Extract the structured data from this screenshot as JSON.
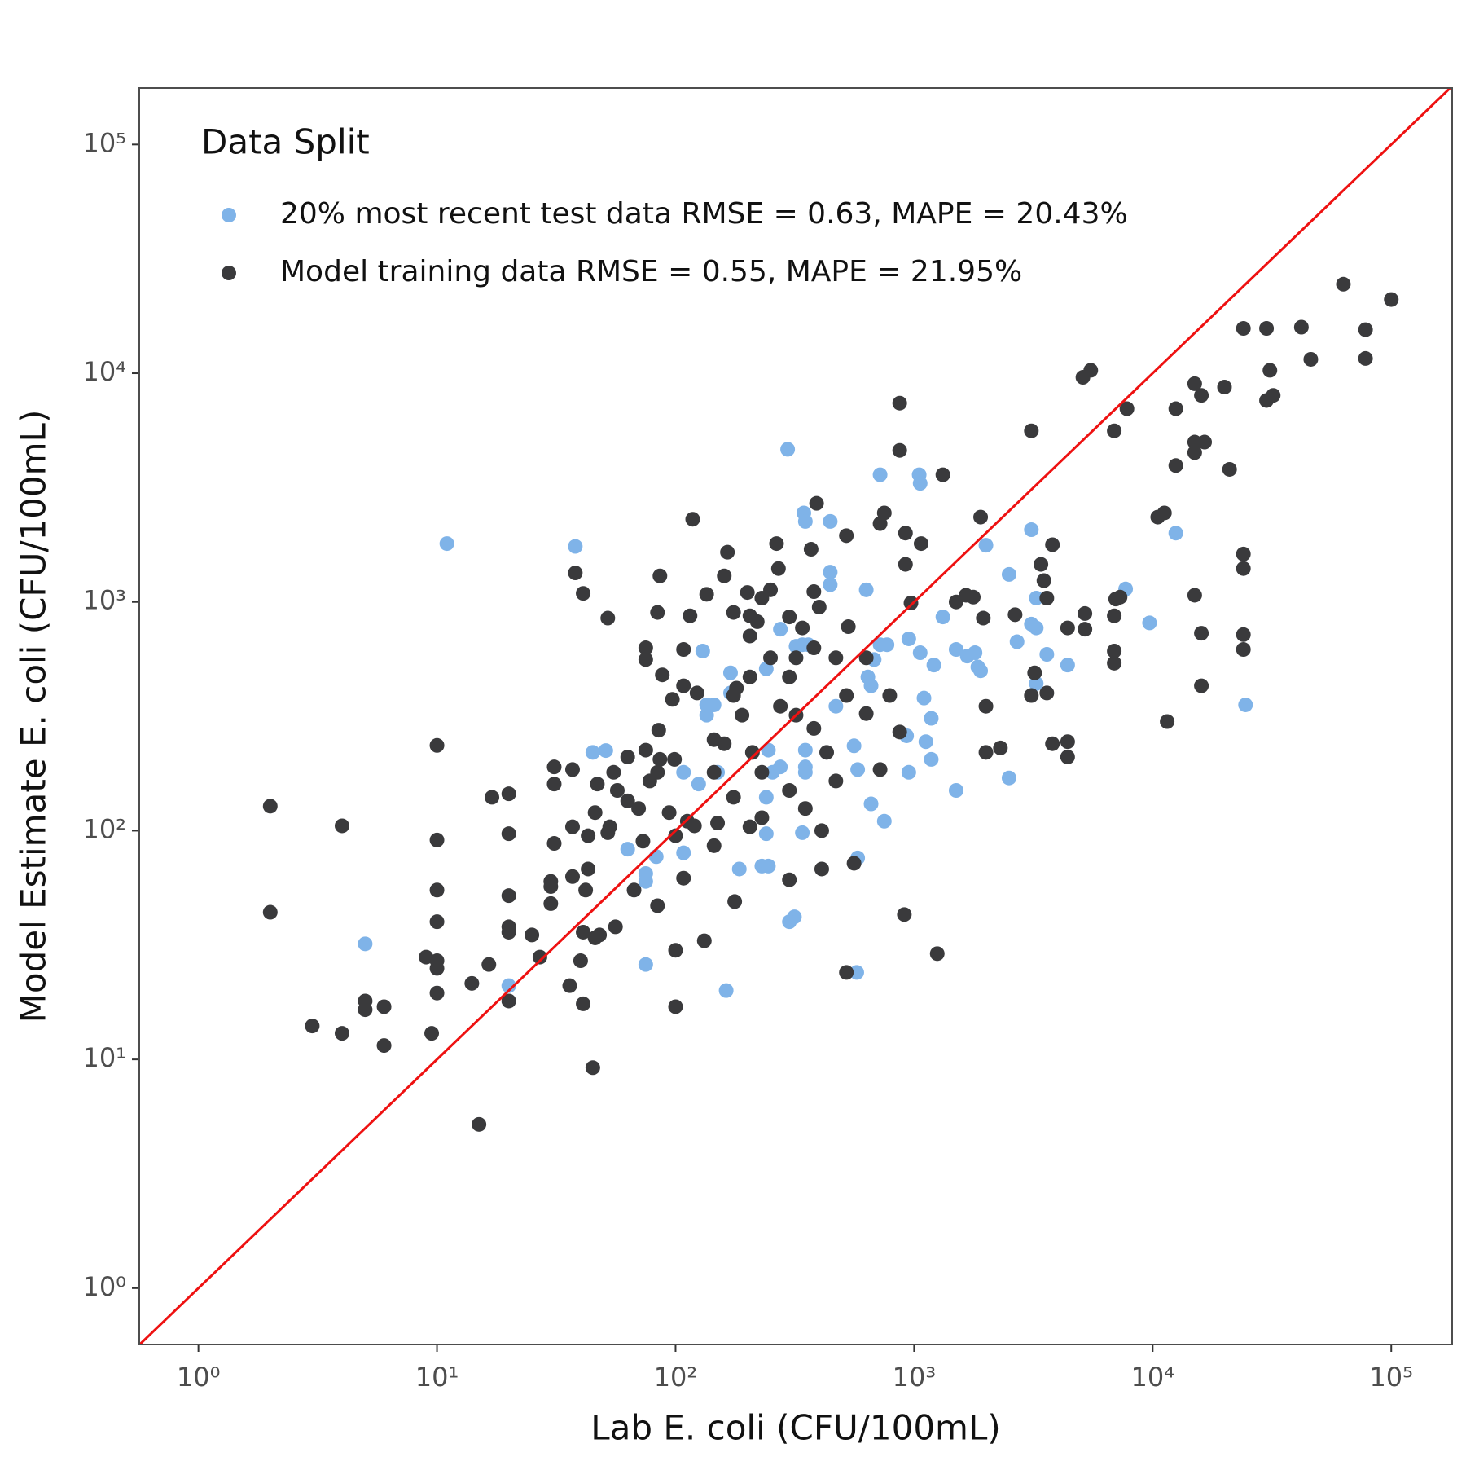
{
  "chart_data": {
    "type": "scatter",
    "x_label": "Lab E. coli (CFU/100mL)",
    "y_label": "Model Estimate E. coli (CFU/100mL)",
    "legend_title": "Data Split",
    "legend": "top-left",
    "log_x": true,
    "log_y": true,
    "grid": false,
    "identity_line": true,
    "identity_line_color": "#ee1111",
    "xlim": [
      0.565,
      180000
    ],
    "ylim": [
      0.567,
      176600
    ],
    "xticks": [
      {
        "value": 1,
        "label": "10⁰"
      },
      {
        "value": 10,
        "label": "10¹"
      },
      {
        "value": 100,
        "label": "10²"
      },
      {
        "value": 1000,
        "label": "10³"
      },
      {
        "value": 10000,
        "label": "10⁴"
      },
      {
        "value": 100000,
        "label": "10⁵"
      }
    ],
    "yticks": [
      {
        "value": 1,
        "label": "10⁰"
      },
      {
        "value": 10,
        "label": "10¹"
      },
      {
        "value": 100,
        "label": "10²"
      },
      {
        "value": 1000,
        "label": "10³"
      },
      {
        "value": 10000,
        "label": "10⁴"
      },
      {
        "value": 100000,
        "label": "10⁵"
      }
    ],
    "series": [
      {
        "name": "20% most recent test data RMSE = 0.63, MAPE = 20.43%",
        "color": "#7fb3e8",
        "x": [
          11,
          38,
          5,
          20,
          51,
          45,
          75,
          75,
          75,
          63,
          83,
          108,
          108,
          125,
          130,
          135,
          135,
          145,
          170,
          170,
          150,
          163,
          185,
          230,
          245,
          240,
          240,
          245,
          240,
          255,
          275,
          275,
          295,
          345,
          350,
          445,
          340,
          360,
          320,
          315,
          300,
          340,
          350,
          350,
          350,
          445,
          445,
          470,
          560,
          580,
          580,
          575,
          660,
          630,
          720,
          720,
          770,
          680,
          660,
          640,
          750,
          950,
          1050,
          1060,
          1060,
          1100,
          1180,
          1120,
          1180,
          930,
          950,
          1210,
          1320,
          1500,
          1500,
          1670,
          1800,
          1850,
          1900,
          2000,
          2500,
          2700,
          2500,
          3100,
          3250,
          3100,
          3250,
          3250,
          3600,
          4400,
          7700,
          9700,
          12500,
          24500
        ],
        "values": [
          1800,
          1750,
          32,
          21,
          224,
          220,
          26,
          65,
          60,
          83,
          77,
          80,
          180,
          160,
          610,
          320,
          355,
          355,
          490,
          400,
          180,
          20,
          68,
          70,
          70,
          97,
          140,
          225,
          510,
          180,
          190,
          760,
          4650,
          2450,
          2250,
          2250,
          650,
          650,
          640,
          42,
          40,
          98,
          225,
          190,
          180,
          1350,
          1190,
          350,
          235,
          185,
          76,
          24,
          131,
          1130,
          3600,
          650,
          650,
          560,
          430,
          470,
          110,
          690,
          3600,
          3300,
          600,
          380,
          310,
          245,
          205,
          260,
          180,
          530,
          860,
          620,
          150,
          580,
          600,
          520,
          500,
          1770,
          1320,
          670,
          170,
          800,
          770,
          2070,
          1040,
          440,
          590,
          530,
          1140,
          810,
          2000,
          355
        ]
      },
      {
        "name": "Model training data RMSE = 0.55, MAPE = 21.95%",
        "color": "#3a3a3c",
        "x": [
          2,
          2,
          3,
          4,
          4,
          5,
          5,
          6,
          6,
          9,
          9.5,
          10,
          10,
          10,
          10,
          10,
          10,
          10,
          14,
          15,
          16.5,
          17,
          20,
          20,
          20,
          20,
          20,
          20,
          25,
          27,
          30,
          30,
          30,
          31,
          31,
          31,
          36,
          37,
          37,
          37,
          38,
          41,
          40,
          41,
          41,
          42,
          43,
          45,
          46,
          48,
          43,
          46,
          47,
          52,
          52,
          56,
          55,
          57,
          63,
          63,
          67,
          73,
          75,
          75,
          75,
          78,
          84,
          84,
          86,
          88,
          85,
          86,
          94,
          97,
          100,
          100,
          99,
          108,
          108,
          112,
          115,
          118,
          123,
          108,
          132,
          135,
          150,
          160,
          165,
          175,
          180,
          177,
          200,
          205,
          205,
          220,
          230,
          250,
          265,
          270,
          300,
          300,
          340,
          370,
          380,
          390,
          400,
          410,
          410,
          520,
          530,
          560,
          520,
          720,
          750,
          870,
          870,
          920,
          920,
          970,
          910,
          1250,
          1070,
          1320,
          1500,
          1650,
          1770,
          1900,
          1950,
          2000,
          2000,
          2300,
          2650,
          3100,
          3200,
          3100,
          3400,
          3500,
          3600,
          3600,
          3800,
          3800,
          4400,
          4400,
          4400,
          5200,
          5200,
          5100,
          5500,
          6900,
          7000,
          6900,
          6900,
          6900,
          7300,
          7800,
          10500,
          11200,
          11500,
          12500,
          12500,
          15000,
          16000,
          15000,
          15000,
          16500,
          15000,
          16000,
          16000,
          20000,
          21000,
          24000,
          24000,
          24000,
          24000,
          24000,
          30000,
          30000,
          31000,
          32000,
          42000,
          46000,
          63000,
          78000,
          78000,
          100000,
          145,
          160,
          190,
          210,
          230,
          175,
          205,
          230,
          275,
          320,
          380,
          430,
          520,
          630,
          790,
          870,
          145,
          120,
          84,
          70,
          53,
          100,
          145,
          300,
          350,
          470,
          630,
          720,
          250,
          320,
          380,
          470,
          300,
          205,
          175
        ],
        "values": [
          128,
          44,
          14,
          105,
          13,
          18,
          16.5,
          17,
          11.5,
          28,
          13,
          27,
          25,
          19.5,
          40,
          55,
          91,
          236,
          21.5,
          5.2,
          26,
          140,
          145,
          97,
          52,
          38,
          36,
          18,
          35,
          28,
          48,
          60,
          57,
          88,
          160,
          190,
          21,
          63,
          104,
          185,
          1340,
          1090,
          27,
          17.5,
          36,
          55,
          68,
          9.2,
          34,
          35,
          95,
          120,
          160,
          850,
          98,
          38,
          180,
          150,
          210,
          135,
          55,
          90,
          630,
          560,
          225,
          165,
          47,
          900,
          1300,
          480,
          275,
          205,
          120,
          375,
          17,
          30,
          205,
          620,
          430,
          110,
          870,
          2300,
          400,
          62,
          33,
          1080,
          108,
          1300,
          1650,
          900,
          420,
          49,
          1100,
          870,
          710,
          820,
          1040,
          1130,
          1800,
          1400,
          860,
          61,
          770,
          1700,
          1110,
          2700,
          950,
          68,
          100,
          1950,
          780,
          72,
          24,
          2200,
          2450,
          7400,
          4600,
          2000,
          1460,
          990,
          43,
          29,
          1800,
          3600,
          1000,
          1070,
          1050,
          2350,
          850,
          350,
          220,
          230,
          880,
          5600,
          490,
          390,
          1460,
          1240,
          1040,
          400,
          1780,
          240,
          770,
          245,
          210,
          890,
          760,
          9600,
          10300,
          5600,
          1030,
          870,
          610,
          540,
          1050,
          7000,
          2350,
          2450,
          300,
          7000,
          3950,
          9000,
          8000,
          5000,
          4500,
          5000,
          1070,
          730,
          430,
          8700,
          3800,
          15700,
          1620,
          1400,
          720,
          620,
          7600,
          15700,
          10300,
          8000,
          15900,
          11500,
          24500,
          15500,
          11600,
          21000,
          250,
          240,
          320,
          220,
          180,
          140,
          104,
          114,
          350,
          320,
          280,
          220,
          390,
          570,
          390,
          270,
          180,
          105,
          180,
          125,
          104,
          95,
          86,
          150,
          125,
          165,
          325,
          185,
          570,
          570,
          630,
          570,
          470,
          470,
          390
        ]
      }
    ]
  }
}
